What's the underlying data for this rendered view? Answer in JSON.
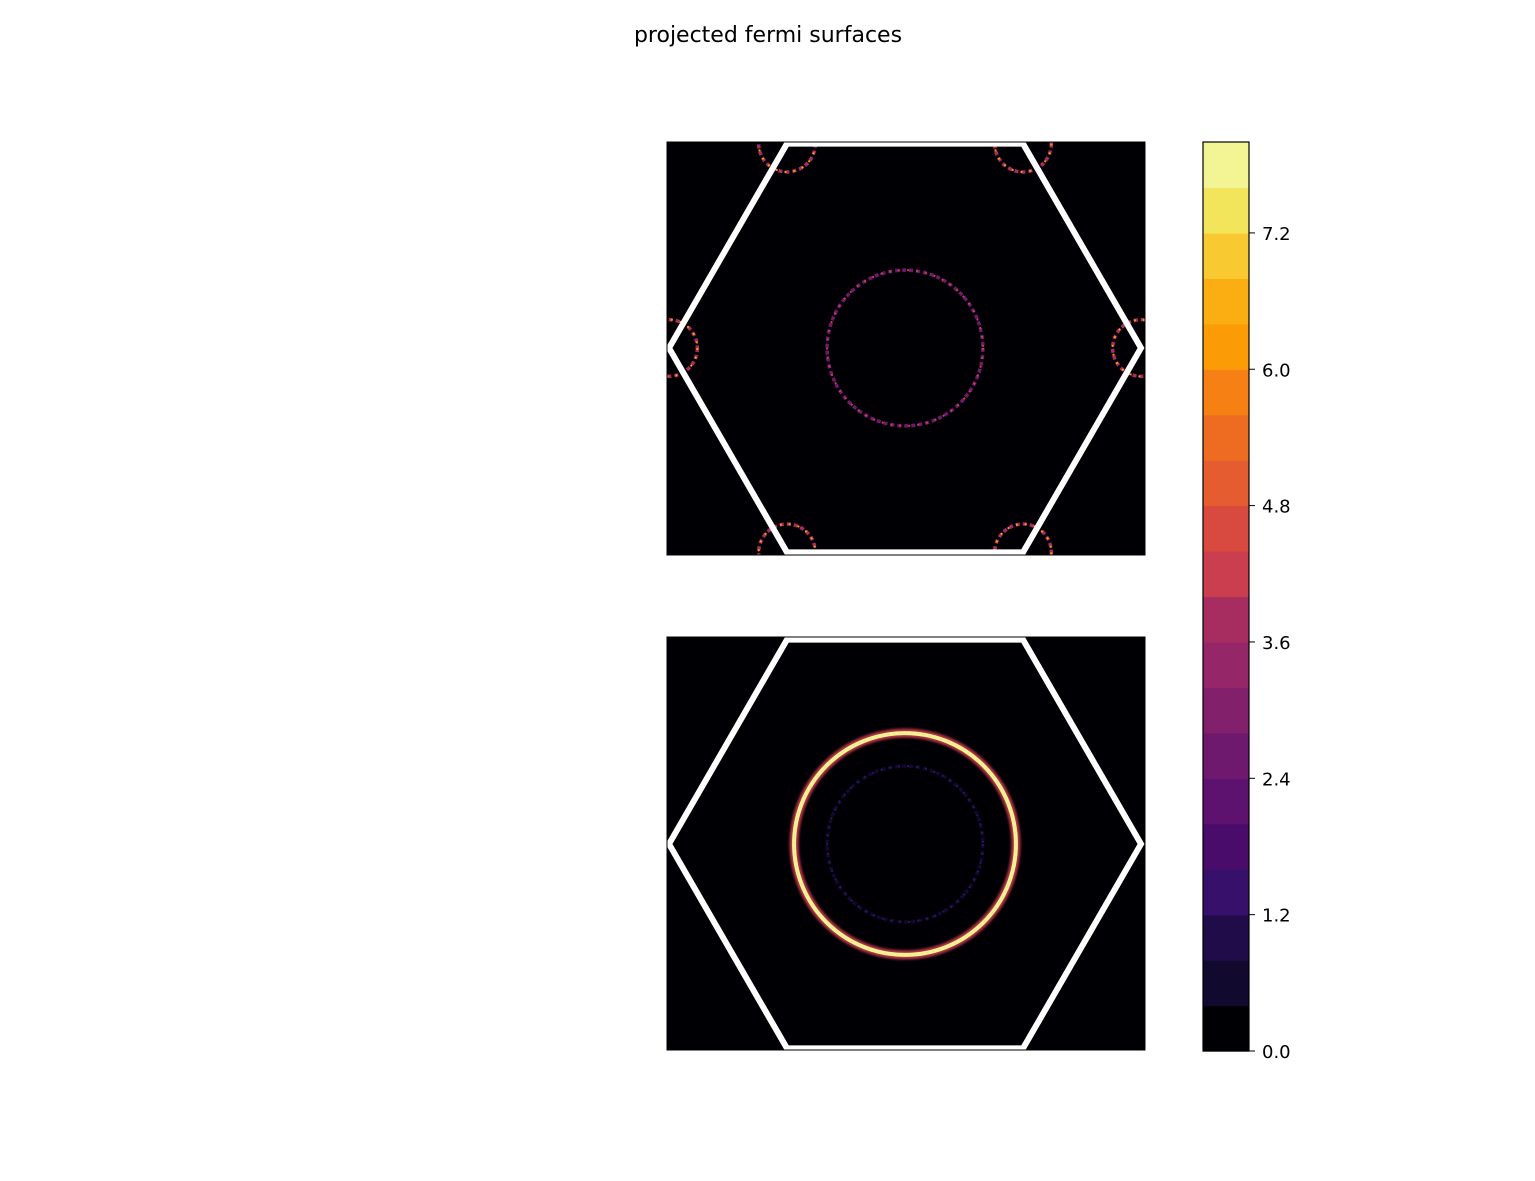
{
  "chart_data": {
    "type": "heatmap",
    "title": "projected fermi surfaces",
    "colormap": "inferno",
    "colorbar": {
      "range": [
        0.0,
        8.0
      ],
      "levels": 20,
      "ticks": [
        "0.0",
        "1.2",
        "2.4",
        "3.6",
        "4.8",
        "6.0",
        "7.2"
      ],
      "tick_values": [
        0.0,
        1.2,
        2.4,
        3.6,
        4.8,
        6.0,
        7.2
      ],
      "colors": [
        "#000004",
        "#110a2e",
        "#210c4a",
        "#37106b",
        "#4a0c6b",
        "#5c126e",
        "#6f196e",
        "#82206c",
        "#952667",
        "#a72d61",
        "#b9325a",
        "#cb3e4f",
        "#d8493f",
        "#e55c30",
        "#ee6c22",
        "#f68013",
        "#fb9b06",
        "#fbae12",
        "#f9c932",
        "#f2e55c",
        "#f3f594"
      ]
    },
    "panels": [
      {
        "name": "top",
        "background_value": 0.0,
        "brillouin_zone": "hexagon",
        "rings": [
          {
            "center": "Gamma",
            "radius": 0.33,
            "peak_value": 4.5,
            "style": "dotted"
          },
          {
            "center": "K",
            "radius": 0.12,
            "peak_value": 6.5,
            "style": "dotted"
          }
        ]
      },
      {
        "name": "bottom",
        "background_value": 0.0,
        "brillouin_zone": "hexagon",
        "rings": [
          {
            "center": "Gamma",
            "radius": 0.47,
            "peak_value": 8.0,
            "style": "solid"
          },
          {
            "center": "Gamma",
            "radius": 0.33,
            "peak_value": 1.0,
            "style": "dotted"
          }
        ]
      }
    ]
  }
}
